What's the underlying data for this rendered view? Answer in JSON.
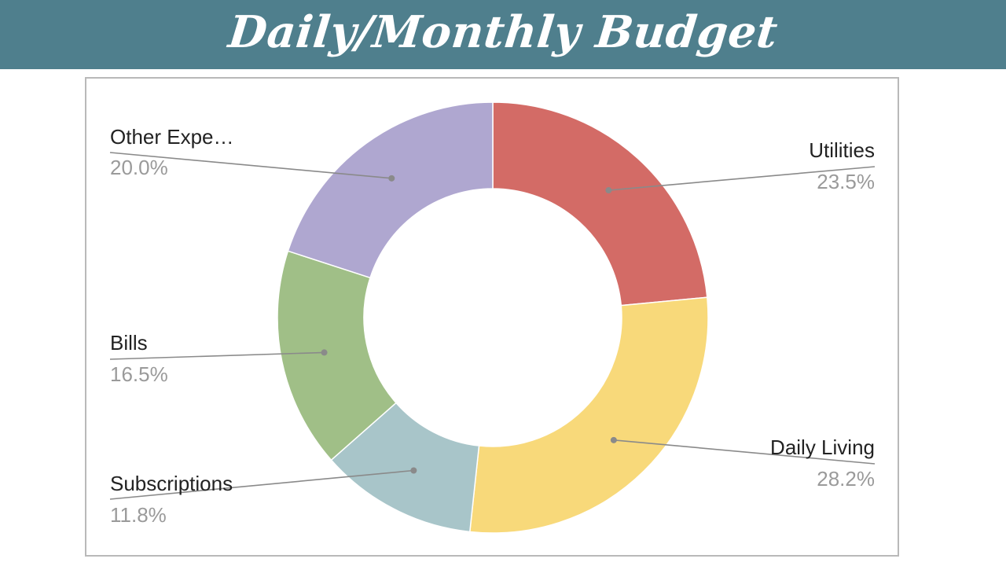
{
  "banner": {
    "title": "Daily/Monthly Budget",
    "background": "#4f7f8d",
    "text_color": "#ffffff"
  },
  "chart_data": {
    "type": "pie",
    "donut": true,
    "legend": "callout-labels",
    "slices": [
      {
        "label": "Utilities",
        "value": 23.5,
        "display": "23.5%",
        "color": "#d36b66"
      },
      {
        "label": "Daily Living",
        "value": 28.2,
        "display": "28.2%",
        "color": "#f8d97a"
      },
      {
        "label": "Subscriptions",
        "value": 11.8,
        "display": "11.8%",
        "color": "#a8c5c9"
      },
      {
        "label": "Bills",
        "value": 16.5,
        "display": "16.5%",
        "color": "#a0bf87"
      },
      {
        "label": "Other Expe…",
        "value": 20.0,
        "display": "20.0%",
        "color": "#afa7d0"
      }
    ]
  }
}
